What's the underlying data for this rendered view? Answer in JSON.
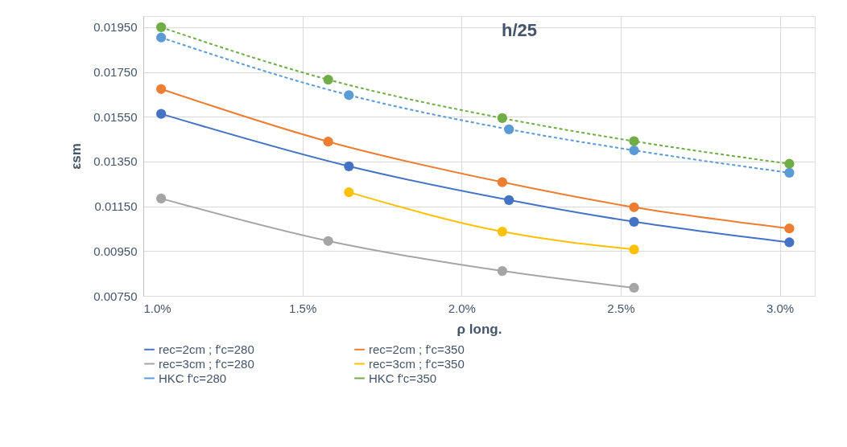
{
  "chart_data": {
    "type": "line",
    "title": "h/25",
    "xlabel": "ρ long.",
    "ylabel": "εsm",
    "xlim": [
      1.0,
      3.11
    ],
    "xticks": [
      {
        "value": 1.0,
        "label": "1.0%"
      },
      {
        "value": 1.5,
        "label": "1.5%"
      },
      {
        "value": 2.0,
        "label": "2.0%"
      },
      {
        "value": 2.5,
        "label": "2.5%"
      },
      {
        "value": 3.0,
        "label": "3.0%"
      }
    ],
    "ylim": [
      0.0075,
      0.02
    ],
    "yticks": [
      {
        "value": 0.0075,
        "label": "0.00750"
      },
      {
        "value": 0.0095,
        "label": "0.00950"
      },
      {
        "value": 0.0115,
        "label": "0.01150"
      },
      {
        "value": 0.0135,
        "label": "0.01350"
      },
      {
        "value": 0.0155,
        "label": "0.01550"
      },
      {
        "value": 0.0175,
        "label": "0.01750"
      },
      {
        "value": 0.0195,
        "label": "0.01950"
      }
    ],
    "grid": true,
    "legend": "bottom",
    "marker": "circle",
    "series": [
      {
        "name": "rec=2cm ; f'c=280",
        "color": "#4472c4",
        "line_style": "solid",
        "x": [
          1.056,
          1.646,
          2.149,
          2.542,
          3.03
        ],
        "values": [
          0.01563,
          0.01329,
          0.01178,
          0.01081,
          0.00989
        ]
      },
      {
        "name": "rec=2cm ; f'c=350",
        "color": "#ed7d31",
        "line_style": "solid",
        "x": [
          1.056,
          1.581,
          2.128,
          2.542,
          3.03
        ],
        "values": [
          0.01674,
          0.01439,
          0.01258,
          0.01146,
          0.01051
        ]
      },
      {
        "name": "rec=3cm ; f'c=280",
        "color": "#a5a5a5",
        "line_style": "solid",
        "x": [
          1.056,
          1.581,
          2.128,
          2.542
        ],
        "values": [
          0.01185,
          0.00995,
          0.00861,
          0.00786
        ]
      },
      {
        "name": "rec=3cm ; f'c=350",
        "color": "#ffc000",
        "line_style": "solid",
        "x": [
          1.646,
          2.128,
          2.542
        ],
        "values": [
          0.01213,
          0.01037,
          0.00957
        ]
      },
      {
        "name": "HKC f'c=280",
        "color": "#5b9bd5",
        "line_style": "dashed",
        "x": [
          1.056,
          1.646,
          2.149,
          2.542,
          3.03
        ],
        "values": [
          0.01904,
          0.01647,
          0.01494,
          0.014,
          0.013
        ]
      },
      {
        "name": "HKC f'c=350",
        "color": "#70ad47",
        "line_style": "dashed",
        "x": [
          1.056,
          1.581,
          2.128,
          2.542,
          3.03
        ],
        "values": [
          0.0195,
          0.01716,
          0.01544,
          0.01441,
          0.0134
        ]
      }
    ]
  }
}
